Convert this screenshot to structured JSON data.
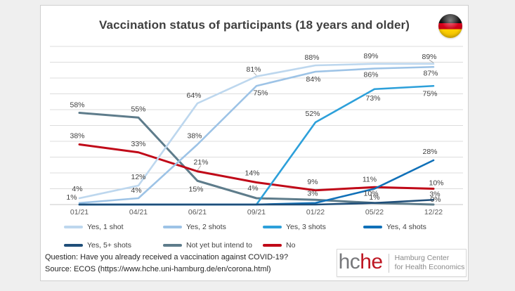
{
  "header": {
    "flag_alt": "germany-flag"
  },
  "chart_data": {
    "type": "line",
    "title": "Vaccination status of participants (18 years and older)",
    "xlabel": "",
    "ylabel": "",
    "ylim": [
      0,
      100
    ],
    "grid_step": 10,
    "grid": true,
    "legend_position": "bottom",
    "categories": [
      "01/21",
      "04/21",
      "06/21",
      "09/21",
      "01/22",
      "05/22",
      "12/22"
    ],
    "series": [
      {
        "name": "Yes, 1 shot",
        "color": "#BDD7EE",
        "values": [
          4,
          12,
          64,
          81,
          88,
          89,
          89
        ],
        "labels": [
          "4%",
          "12%",
          "64%",
          "81%",
          "88%",
          "89%",
          "89%"
        ],
        "label_offsets": [
          [
            -3,
            -10
          ],
          [
            0,
            -9
          ],
          [
            -5,
            -8
          ],
          [
            -4,
            -7
          ],
          [
            -5,
            -8
          ],
          [
            -5,
            -8
          ],
          [
            -6,
            -7
          ]
        ],
        "leaders": [
          3,
          6
        ]
      },
      {
        "name": "Yes, 2 shots",
        "color": "#9DC3E6",
        "values": [
          1,
          4,
          38,
          75,
          84,
          86,
          87
        ],
        "labels": [
          "1%",
          "4%",
          "38%",
          "75%",
          "84%",
          "86%",
          "87%"
        ],
        "label_offsets": [
          [
            -11,
            -5
          ],
          [
            -3,
            -8
          ],
          [
            -4,
            -9
          ],
          [
            6,
            13
          ],
          [
            -3,
            14
          ],
          [
            -5,
            12
          ],
          [
            -4,
            12
          ]
        ],
        "leaders": []
      },
      {
        "name": "Yes, 3 shots",
        "color": "#2DA0DA",
        "values": [
          0,
          0,
          0,
          0,
          52,
          73,
          75
        ],
        "labels": [
          null,
          null,
          null,
          null,
          "52%",
          "73%",
          "75%"
        ],
        "label_offsets": [
          null,
          null,
          null,
          null,
          [
            -4,
            -9
          ],
          [
            -2,
            16
          ],
          [
            -5,
            14
          ]
        ],
        "leaders": []
      },
      {
        "name": "Yes, 4 shots",
        "color": "#1070B8",
        "values": [
          0,
          0,
          0,
          0,
          1,
          10,
          28
        ],
        "labels": [
          null,
          null,
          null,
          null,
          null,
          "10%",
          "28%"
        ],
        "label_offsets": [
          null,
          null,
          null,
          null,
          null,
          [
            -5,
            10
          ],
          [
            -5,
            -9
          ]
        ],
        "leaders": []
      },
      {
        "name": "Yes, 5+ shots",
        "color": "#1F4E79",
        "values": [
          0,
          0,
          0,
          0,
          0,
          1,
          3
        ],
        "labels": [
          null,
          null,
          null,
          null,
          null,
          null,
          "3%"
        ],
        "label_offsets": [
          null,
          null,
          null,
          null,
          null,
          null,
          [
            2,
            -5
          ]
        ],
        "leaders": []
      },
      {
        "name": "Not yet but intend to",
        "color": "#5E7C8B",
        "values": [
          58,
          55,
          15,
          4,
          3,
          1,
          0
        ],
        "labels": [
          "58%",
          "55%",
          "15%",
          "4%",
          "3%",
          "1%",
          "0%"
        ],
        "label_offsets": [
          [
            -3,
            -8
          ],
          [
            0,
            -9
          ],
          [
            -2,
            15
          ],
          [
            -5,
            -11
          ],
          [
            -4,
            -6
          ],
          [
            0,
            -5
          ],
          [
            3,
            -4
          ]
        ],
        "leaders": []
      },
      {
        "name": "No",
        "color": "#C00918",
        "values": [
          38,
          33,
          21,
          14,
          9,
          11,
          10
        ],
        "labels": [
          "38%",
          "33%",
          "21%",
          "14%",
          "9%",
          "11%",
          "10%"
        ],
        "label_offsets": [
          [
            -3,
            -9
          ],
          [
            0,
            -9
          ],
          [
            5,
            -10
          ],
          [
            -6,
            -10
          ],
          [
            -4,
            -9
          ],
          [
            -7,
            -8
          ],
          [
            4,
            -5
          ]
        ],
        "leaders": [
          2
        ]
      }
    ]
  },
  "footer": {
    "question": "Question: Have you already received a vaccination against COVID-19?",
    "source": "Source: ECOS (https://www.hche.uni-hamburg.de/en/corona.html)"
  },
  "logo": {
    "part_gray": "hc",
    "part_red": "he",
    "org_line1": "Hamburg Center",
    "org_line2": "for Health Economics"
  },
  "colors": {
    "grid": "#DCDCDC",
    "axis": "#C9C9C9",
    "data_label": "#404040",
    "tick_label": "#595959"
  }
}
